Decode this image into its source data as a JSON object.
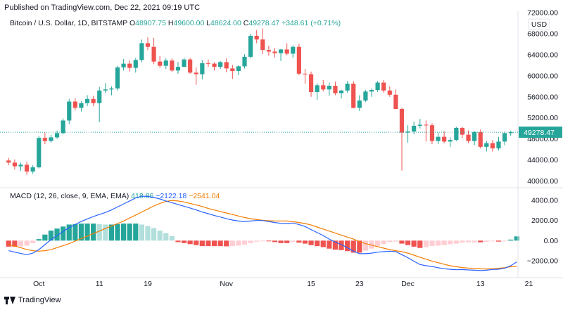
{
  "header": {
    "published": "Published on TradingView.com, Dec 22, 2021 09:19 UTC"
  },
  "price_legend": {
    "symbol": "Bitcoin / U.S. Dollar, 1D, BITSTAMP",
    "o_label": "O",
    "o_value": "48907.75",
    "h_label": "H",
    "h_value": "49600.00",
    "l_label": "L",
    "l_value": "48624.00",
    "c_label": "C",
    "c_value": "49278.47",
    "change": "+348.61 (+0.71%)"
  },
  "macd_legend": {
    "label": "MACD (12, 26, close, 9, EMA, EMA)",
    "histogram": "418.86",
    "macd": "−2122.18",
    "signal": "−2541.04"
  },
  "footer": {
    "brand": "TradingView"
  },
  "colors": {
    "up": "#26a69a",
    "down": "#ef5350",
    "up_light": "#b2dfdb",
    "down_light": "#ffcdd2",
    "macd": "#2962ff",
    "signal": "#f57c00"
  },
  "chart_data": [
    {
      "type": "candlestick",
      "currency_label": "USD",
      "last_price_label": "49278.47",
      "y_ticks": [
        "72000.00",
        "68000.00",
        "64000.00",
        "60000.00",
        "56000.00",
        "52000.00",
        "48000.00",
        "44000.00",
        "40000.00"
      ],
      "ylim": [
        39000,
        72000
      ],
      "x_ticks": [
        "Oct",
        "11",
        "19",
        "Nov",
        "15",
        "23",
        "Dec",
        "13",
        "21"
      ],
      "x_tick_index": [
        5,
        15,
        23,
        36,
        50,
        58,
        66,
        78,
        86
      ],
      "ohlc": [
        [
          43900,
          44400,
          43000,
          43500
        ],
        [
          43500,
          44100,
          42200,
          42800
        ],
        [
          42800,
          43500,
          41900,
          43100
        ],
        [
          43100,
          43700,
          41200,
          41800
        ],
        [
          41800,
          43000,
          41400,
          42600
        ],
        [
          42600,
          48600,
          42400,
          48200
        ],
        [
          48200,
          49200,
          47000,
          47600
        ],
        [
          47600,
          48800,
          47300,
          48300
        ],
        [
          48300,
          49600,
          48000,
          49100
        ],
        [
          49100,
          51900,
          48900,
          51500
        ],
        [
          51500,
          55600,
          50800,
          55100
        ],
        [
          55100,
          55700,
          53400,
          53900
        ],
        [
          53900,
          55200,
          53200,
          54800
        ],
        [
          54800,
          56300,
          54200,
          55600
        ],
        [
          55600,
          56200,
          54200,
          54800
        ],
        [
          54800,
          57900,
          51200,
          57200
        ],
        [
          57200,
          58600,
          56700,
          57400
        ],
        [
          57400,
          58000,
          56300,
          57600
        ],
        [
          57600,
          61900,
          57200,
          61600
        ],
        [
          61600,
          63200,
          61000,
          62300
        ],
        [
          62300,
          62900,
          60800,
          61500
        ],
        [
          61500,
          63400,
          60600,
          63000
        ],
        [
          63000,
          66900,
          62600,
          66200
        ],
        [
          66200,
          67300,
          64900,
          65500
        ],
        [
          65500,
          67200,
          62200,
          62700
        ],
        [
          62700,
          63800,
          61500,
          61900
        ],
        [
          61900,
          63300,
          61300,
          62900
        ],
        [
          62900,
          63300,
          60700,
          61000
        ],
        [
          61000,
          62600,
          60400,
          61700
        ],
        [
          61700,
          63400,
          61600,
          63100
        ],
        [
          63100,
          63400,
          60400,
          60600
        ],
        [
          60600,
          61600,
          58300,
          60300
        ],
        [
          60300,
          63000,
          59300,
          62400
        ],
        [
          62400,
          63100,
          61700,
          62300
        ],
        [
          62300,
          62600,
          61000,
          61700
        ],
        [
          61700,
          62800,
          61300,
          62600
        ],
        [
          62600,
          63300,
          60700,
          61400
        ],
        [
          61400,
          62100,
          59400,
          60900
        ],
        [
          60900,
          62000,
          60100,
          61800
        ],
        [
          61800,
          64100,
          61400,
          63600
        ],
        [
          63600,
          68000,
          63300,
          67600
        ],
        [
          67600,
          68700,
          66200,
          66900
        ],
        [
          66900,
          69000,
          64100,
          64900
        ],
        [
          64900,
          65700,
          63800,
          64600
        ],
        [
          64600,
          65300,
          63500,
          64300
        ],
        [
          64300,
          65100,
          62800,
          65000
        ],
        [
          65000,
          66200,
          63900,
          64200
        ],
        [
          64200,
          65800,
          63400,
          65500
        ],
        [
          65500,
          66100,
          60100,
          60400
        ],
        [
          60400,
          61300,
          58500,
          60300
        ],
        [
          60300,
          60800,
          56000,
          56900
        ],
        [
          56900,
          58600,
          55400,
          58200
        ],
        [
          58200,
          59200,
          57000,
          57400
        ],
        [
          57400,
          58700,
          56200,
          58100
        ],
        [
          58100,
          58900,
          56300,
          56700
        ],
        [
          56700,
          57300,
          55700,
          57200
        ],
        [
          57200,
          59000,
          56800,
          58500
        ],
        [
          58500,
          59000,
          53800,
          53900
        ],
        [
          53900,
          56300,
          53300,
          55300
        ],
        [
          55300,
          57300,
          55000,
          57000
        ],
        [
          57000,
          57600,
          56000,
          57300
        ],
        [
          57300,
          59000,
          56900,
          58700
        ],
        [
          58700,
          59200,
          56800,
          57200
        ],
        [
          57200,
          58000,
          56000,
          56400
        ],
        [
          56400,
          57400,
          53700,
          53700
        ],
        [
          53700,
          53900,
          42000,
          49200
        ],
        [
          49200,
          50600,
          47300,
          49400
        ],
        [
          49400,
          51300,
          48900,
          50500
        ],
        [
          50500,
          51800,
          50000,
          50700
        ],
        [
          50700,
          51500,
          47500,
          50600
        ],
        [
          50600,
          51000,
          47000,
          47600
        ],
        [
          47600,
          49200,
          47000,
          48400
        ],
        [
          48400,
          49500,
          47200,
          47500
        ],
        [
          47500,
          48300,
          46500,
          47800
        ],
        [
          47800,
          50300,
          47600,
          50100
        ],
        [
          50100,
          50300,
          48200,
          48800
        ],
        [
          48800,
          49600,
          47200,
          47600
        ],
        [
          47600,
          49500,
          46800,
          49300
        ],
        [
          49300,
          49800,
          46200,
          46500
        ],
        [
          46500,
          47600,
          45600,
          47200
        ],
        [
          47200,
          47800,
          45600,
          46200
        ],
        [
          46200,
          48400,
          45800,
          47500
        ],
        [
          47500,
          49400,
          46800,
          49100
        ],
        [
          49100,
          49600,
          48600,
          49278
        ]
      ]
    },
    {
      "type": "macd",
      "y_ticks": [
        "4000.00",
        "2000.00",
        "0.00",
        "−2000.00"
      ],
      "ylim": [
        -3200,
        5200
      ],
      "macd": [
        -1000,
        -1150,
        -1280,
        -1400,
        -1250,
        -900,
        -400,
        100,
        500,
        900,
        1300,
        1600,
        1900,
        2150,
        2400,
        2600,
        2800,
        3050,
        3350,
        3650,
        3950,
        4250,
        4420,
        4400,
        4300,
        4150,
        3950,
        3780,
        3600,
        3420,
        3250,
        3050,
        2850,
        2680,
        2500,
        2350,
        2180,
        2050,
        1950,
        1900,
        1950,
        2000,
        2000,
        1900,
        1800,
        1720,
        1700,
        1750,
        1600,
        1400,
        1100,
        800,
        500,
        150,
        -150,
        -400,
        -700,
        -1050,
        -1300,
        -1300,
        -1250,
        -1150,
        -1100,
        -1050,
        -1100,
        -1400,
        -1700,
        -2050,
        -2380,
        -2500,
        -2580,
        -2700,
        -2800,
        -2860,
        -2900,
        -2880,
        -2920,
        -2950,
        -2980,
        -2950,
        -2870,
        -2850,
        -2750,
        -2500,
        -2122
      ],
      "signal": [
        -400,
        -550,
        -700,
        -900,
        -1000,
        -1050,
        -1000,
        -900,
        -700,
        -500,
        -300,
        -50,
        200,
        450,
        700,
        950,
        1200,
        1450,
        1700,
        1950,
        2250,
        2550,
        2850,
        3150,
        3450,
        3700,
        3900,
        4000,
        3950,
        3850,
        3700,
        3550,
        3400,
        3200,
        3050,
        2900,
        2750,
        2600,
        2450,
        2300,
        2180,
        2090,
        2020,
        1980,
        1960,
        1960,
        1950,
        1880,
        1800,
        1700,
        1550,
        1350,
        1150,
        950,
        750,
        550,
        350,
        150,
        -100,
        -300,
        -450,
        -600,
        -750,
        -900,
        -1000,
        -1100,
        -1250,
        -1450,
        -1650,
        -1850,
        -2050,
        -2200,
        -2350,
        -2500,
        -2600,
        -2680,
        -2740,
        -2780,
        -2810,
        -2820,
        -2800,
        -2750,
        -2700,
        -2600,
        -2541
      ],
      "histogram": [
        -600,
        -600,
        -580,
        -500,
        -250,
        150,
        600,
        1000,
        1200,
        1400,
        1600,
        1650,
        1700,
        1700,
        1700,
        1650,
        1600,
        1600,
        1650,
        1700,
        1700,
        1700,
        1600,
        1450,
        1250,
        1000,
        750,
        450,
        -150,
        -250,
        -350,
        -450,
        -550,
        -550,
        -550,
        -550,
        -570,
        -550,
        -500,
        -400,
        -250,
        -100,
        -50,
        -70,
        -150,
        -250,
        -250,
        -130,
        -200,
        -300,
        -450,
        -550,
        -650,
        -800,
        -900,
        -950,
        -1050,
        -1200,
        -1200,
        -1000,
        -800,
        -550,
        -350,
        -150,
        -100,
        -300,
        -450,
        -600,
        -730,
        -650,
        -530,
        -500,
        -450,
        -360,
        -300,
        -200,
        -180,
        -170,
        -170,
        -130,
        -70,
        -100,
        -50,
        100,
        419
      ]
    }
  ]
}
